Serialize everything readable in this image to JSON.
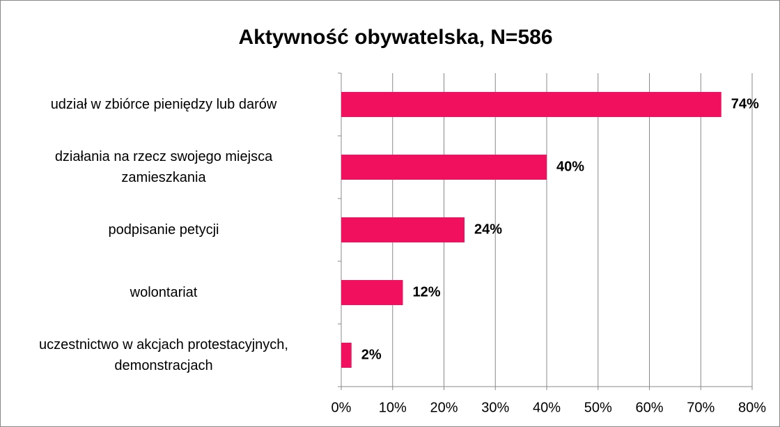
{
  "chart_data": {
    "type": "bar",
    "orientation": "horizontal",
    "title": "Aktywność obywatelska, N=586",
    "categories": [
      "udział w zbiórce pieniędzy lub darów",
      "działania na rzecz swojego miejsca\nzamieszkania",
      "podpisanie petycji",
      "wolontariat",
      "uczestnictwo w akcjach protestacyjnych,\ndemonstracjach"
    ],
    "values": [
      74,
      40,
      24,
      12,
      2
    ],
    "value_labels": [
      "74%",
      "40%",
      "24%",
      "12%",
      "2%"
    ],
    "color": "#f0105e",
    "xlim": [
      0,
      80
    ],
    "xticks": [
      {
        "value": 0,
        "label": "0%"
      },
      {
        "value": 10,
        "label": "10%"
      },
      {
        "value": 20,
        "label": "20%"
      },
      {
        "value": 30,
        "label": "30%"
      },
      {
        "value": 40,
        "label": "40%"
      },
      {
        "value": 50,
        "label": "50%"
      },
      {
        "value": 60,
        "label": "60%"
      },
      {
        "value": 70,
        "label": "70%"
      },
      {
        "value": 80,
        "label": "80%"
      }
    ],
    "grid": true
  }
}
